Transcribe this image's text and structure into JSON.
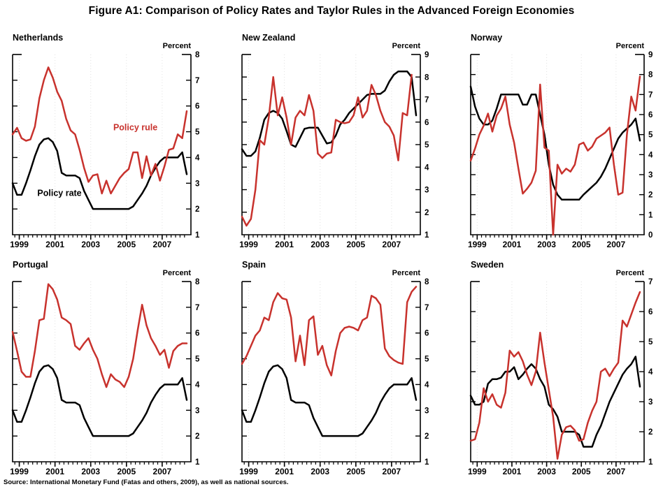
{
  "figure_title": "Figure A1: Comparison of Policy Rates and Taylor Rules in the Advanced Foreign Economies",
  "source_note": "Source: International Monetary Fund (Fatas and others, 2009), as well as national sources.",
  "colors": {
    "policy_rule": "#C8322D",
    "policy_rate": "#000000",
    "gridline": "#E2E2E2"
  },
  "axis": {
    "unit_label": "Percent",
    "x_tick_labels": [
      "1999",
      "2001",
      "2003",
      "2005",
      "2007"
    ],
    "x_range": "1999Q1-2008Q4, quarterly",
    "quarters": 40
  },
  "chart_data": [
    {
      "type": "line",
      "title": "Netherlands",
      "ylabel": "Percent",
      "ylim": [
        1,
        8
      ],
      "series": [
        {
          "name": "Policy rate",
          "color": "#000000",
          "values": [
            3.0,
            2.55,
            2.55,
            3.0,
            3.5,
            4.05,
            4.5,
            4.7,
            4.75,
            4.6,
            4.25,
            3.4,
            3.3,
            3.3,
            3.3,
            3.2,
            2.7,
            2.35,
            2.0,
            2.0,
            2.0,
            2.0,
            2.0,
            2.0,
            2.0,
            2.0,
            2.0,
            2.1,
            2.35,
            2.6,
            2.9,
            3.3,
            3.6,
            3.85,
            4.0,
            4.0,
            4.0,
            4.0,
            4.2,
            3.35
          ]
        },
        {
          "name": "Policy rule",
          "color": "#C8322D",
          "values": [
            4.9,
            5.15,
            4.75,
            4.65,
            4.7,
            5.2,
            6.3,
            7.0,
            7.5,
            7.1,
            6.55,
            6.2,
            5.5,
            5.05,
            4.9,
            4.3,
            3.6,
            3.05,
            3.3,
            3.35,
            2.6,
            3.1,
            2.6,
            2.9,
            3.2,
            3.4,
            3.55,
            4.2,
            4.2,
            3.2,
            4.05,
            3.3,
            3.75,
            3.1,
            3.65,
            4.3,
            4.35,
            4.9,
            4.75,
            5.8
          ]
        }
      ],
      "annotations": [
        {
          "label": "Policy rule",
          "x_quarter": 27.5,
          "y_value": 5.05,
          "color": "#C8322D"
        },
        {
          "label": "Policy rate",
          "x_quarter": 10.5,
          "y_value": 2.5,
          "color": "#000000"
        }
      ]
    },
    {
      "type": "line",
      "title": "New Zealand",
      "ylabel": "Percent",
      "ylim": [
        1,
        9
      ],
      "series": [
        {
          "name": "Policy rate",
          "color": "#000000",
          "values": [
            4.8,
            4.5,
            4.5,
            4.7,
            5.3,
            6.1,
            6.4,
            6.5,
            6.4,
            6.15,
            5.6,
            5.0,
            4.9,
            5.3,
            5.7,
            5.75,
            5.75,
            5.75,
            5.4,
            5.05,
            5.1,
            5.4,
            5.9,
            6.1,
            6.4,
            6.6,
            6.8,
            7.0,
            7.2,
            7.25,
            7.25,
            7.25,
            7.4,
            7.8,
            8.1,
            8.25,
            8.25,
            8.25,
            8.0,
            6.3
          ]
        },
        {
          "name": "Policy rule",
          "color": "#C8322D",
          "values": [
            1.8,
            1.4,
            1.7,
            3.0,
            5.2,
            5.0,
            6.2,
            8.0,
            6.3,
            7.1,
            6.2,
            5.0,
            6.2,
            6.5,
            6.3,
            7.2,
            6.5,
            4.6,
            4.4,
            4.6,
            4.65,
            6.1,
            6.0,
            5.95,
            6.0,
            6.3,
            7.1,
            6.2,
            6.5,
            7.65,
            7.2,
            6.5,
            6.0,
            5.8,
            5.4,
            4.3,
            6.4,
            6.3,
            8.1,
            null
          ]
        }
      ],
      "annotations": []
    },
    {
      "type": "line",
      "title": "Norway",
      "ylabel": "Percent",
      "ylim": [
        0,
        9
      ],
      "series": [
        {
          "name": "Policy rate",
          "color": "#000000",
          "values": [
            7.4,
            6.4,
            5.8,
            5.5,
            5.5,
            5.7,
            6.3,
            7.0,
            7.0,
            7.0,
            7.0,
            7.0,
            6.5,
            6.5,
            7.0,
            7.0,
            6.0,
            5.0,
            3.5,
            2.5,
            2.0,
            1.75,
            1.75,
            1.75,
            1.75,
            1.75,
            2.0,
            2.2,
            2.4,
            2.6,
            2.9,
            3.3,
            3.8,
            4.3,
            4.8,
            5.1,
            5.3,
            5.5,
            5.8,
            4.7
          ]
        },
        {
          "name": "Policy rule",
          "color": "#C8322D",
          "values": [
            3.7,
            4.3,
            5.0,
            5.45,
            6.05,
            5.15,
            5.95,
            6.3,
            6.9,
            5.5,
            4.6,
            3.3,
            2.05,
            2.3,
            2.6,
            3.2,
            7.5,
            4.35,
            4.2,
            0.0,
            3.5,
            3.05,
            3.3,
            3.15,
            3.5,
            4.5,
            4.6,
            4.2,
            4.4,
            4.8,
            4.95,
            5.1,
            5.35,
            3.5,
            2.0,
            2.1,
            5.0,
            6.9,
            6.2,
            7.9
          ]
        }
      ],
      "annotations": []
    },
    {
      "type": "line",
      "title": "Portugal",
      "ylabel": "Percent",
      "ylim": [
        1,
        8
      ],
      "series": [
        {
          "name": "Policy rate",
          "color": "#000000",
          "values": [
            3.0,
            2.55,
            2.55,
            3.0,
            3.5,
            4.05,
            4.5,
            4.7,
            4.75,
            4.6,
            4.25,
            3.4,
            3.3,
            3.3,
            3.3,
            3.2,
            2.7,
            2.35,
            2.0,
            2.0,
            2.0,
            2.0,
            2.0,
            2.0,
            2.0,
            2.0,
            2.0,
            2.1,
            2.35,
            2.6,
            2.9,
            3.3,
            3.6,
            3.85,
            4.0,
            4.0,
            4.0,
            4.0,
            4.25,
            3.4
          ]
        },
        {
          "name": "Policy rule",
          "color": "#C8322D",
          "values": [
            6.05,
            5.3,
            4.5,
            4.3,
            4.3,
            5.3,
            6.5,
            6.55,
            7.9,
            7.7,
            7.3,
            6.6,
            6.5,
            6.35,
            5.5,
            5.35,
            5.6,
            5.8,
            5.35,
            5.0,
            4.4,
            3.9,
            4.4,
            4.2,
            4.1,
            3.9,
            4.3,
            5.0,
            6.1,
            7.1,
            6.3,
            5.8,
            5.5,
            5.15,
            5.35,
            4.65,
            5.3,
            5.5,
            5.6,
            5.6
          ]
        }
      ],
      "annotations": []
    },
    {
      "type": "line",
      "title": "Spain",
      "ylabel": "Percent",
      "ylim": [
        1,
        8
      ],
      "series": [
        {
          "name": "Policy rate",
          "color": "#000000",
          "values": [
            3.0,
            2.55,
            2.55,
            3.0,
            3.5,
            4.05,
            4.5,
            4.7,
            4.75,
            4.6,
            4.25,
            3.4,
            3.3,
            3.3,
            3.3,
            3.2,
            2.7,
            2.35,
            2.0,
            2.0,
            2.0,
            2.0,
            2.0,
            2.0,
            2.0,
            2.0,
            2.0,
            2.1,
            2.35,
            2.6,
            2.9,
            3.3,
            3.6,
            3.85,
            4.0,
            4.0,
            4.0,
            4.0,
            4.25,
            3.4
          ]
        },
        {
          "name": "Policy rule",
          "color": "#C8322D",
          "values": [
            4.8,
            5.1,
            5.5,
            5.9,
            6.1,
            6.6,
            6.5,
            7.2,
            7.55,
            7.35,
            7.3,
            6.6,
            4.9,
            5.9,
            4.75,
            6.5,
            6.65,
            5.15,
            5.5,
            4.75,
            4.35,
            5.3,
            6.0,
            6.2,
            6.25,
            6.2,
            6.1,
            6.5,
            6.6,
            7.45,
            7.35,
            7.1,
            5.4,
            5.1,
            4.95,
            4.85,
            4.8,
            7.2,
            7.6,
            7.8
          ]
        }
      ],
      "annotations": []
    },
    {
      "type": "line",
      "title": "Sweden",
      "ylabel": "Percent",
      "ylim": [
        1,
        7
      ],
      "series": [
        {
          "name": "Policy rate",
          "color": "#000000",
          "values": [
            3.2,
            2.9,
            2.9,
            3.0,
            3.6,
            3.75,
            3.75,
            3.8,
            4.0,
            4.0,
            4.15,
            3.75,
            3.9,
            4.1,
            4.25,
            4.1,
            3.75,
            3.5,
            2.9,
            2.75,
            2.5,
            2.0,
            2.0,
            2.0,
            2.0,
            1.9,
            1.5,
            1.5,
            1.5,
            1.9,
            2.2,
            2.6,
            3.0,
            3.3,
            3.6,
            3.9,
            4.1,
            4.25,
            4.5,
            3.5
          ]
        },
        {
          "name": "Policy rule",
          "color": "#C8322D",
          "values": [
            1.7,
            1.75,
            2.3,
            3.45,
            3.0,
            3.25,
            2.9,
            2.8,
            3.3,
            4.7,
            4.5,
            4.65,
            4.35,
            3.9,
            3.55,
            4.0,
            5.3,
            4.3,
            3.4,
            2.5,
            1.1,
            1.9,
            2.15,
            2.2,
            2.05,
            1.7,
            1.75,
            2.3,
            2.7,
            3.0,
            4.0,
            4.1,
            3.85,
            4.1,
            4.3,
            5.7,
            5.5,
            5.9,
            6.3,
            6.65
          ]
        }
      ],
      "annotations": []
    }
  ]
}
